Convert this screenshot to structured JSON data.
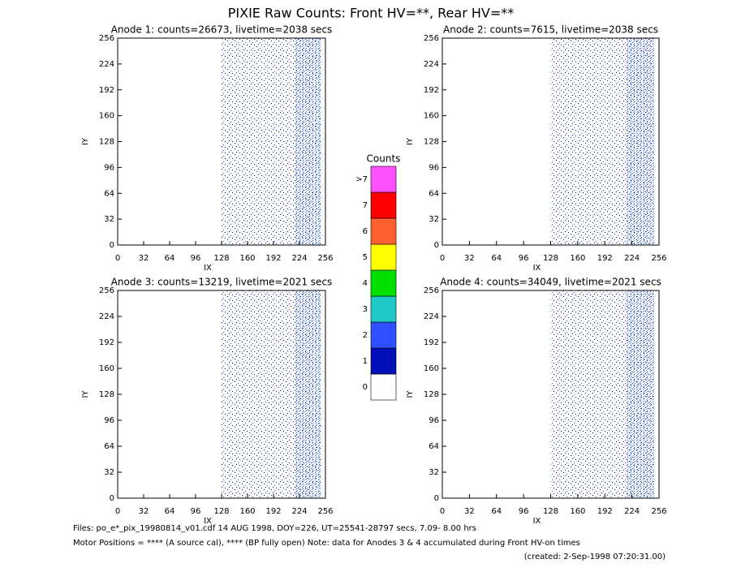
{
  "title": "PIXIE Raw Counts:  Front HV=**, Rear HV=**",
  "chart_data": [
    {
      "type": "heatmap",
      "title": "Anode 1: counts=26673, livetime=2038 secs",
      "xlabel": "IX",
      "ylabel": "IY",
      "xlim": [
        0,
        256
      ],
      "ylim": [
        0,
        256
      ],
      "xticks": [
        0,
        32,
        64,
        96,
        128,
        160,
        192,
        224,
        256
      ],
      "yticks": [
        0,
        32,
        64,
        96,
        128,
        160,
        192,
        224,
        256
      ]
    },
    {
      "type": "heatmap",
      "title": "Anode 2: counts=7615, livetime=2038 secs",
      "xlabel": "IX",
      "ylabel": "IY",
      "xlim": [
        0,
        256
      ],
      "ylim": [
        0,
        256
      ],
      "xticks": [
        0,
        32,
        64,
        96,
        128,
        160,
        192,
        224,
        256
      ],
      "yticks": [
        0,
        32,
        64,
        96,
        128,
        160,
        192,
        224,
        256
      ]
    },
    {
      "type": "heatmap",
      "title": "Anode 3: counts=13219, livetime=2021 secs",
      "xlabel": "IX",
      "ylabel": "IY",
      "xlim": [
        0,
        256
      ],
      "ylim": [
        0,
        256
      ],
      "xticks": [
        0,
        32,
        64,
        96,
        128,
        160,
        192,
        224,
        256
      ],
      "yticks": [
        0,
        32,
        64,
        96,
        128,
        160,
        192,
        224,
        256
      ]
    },
    {
      "type": "heatmap",
      "title": "Anode 4: counts=34049, livetime=2021 secs",
      "xlabel": "IX",
      "ylabel": "IY",
      "xlim": [
        0,
        256
      ],
      "ylim": [
        0,
        256
      ],
      "xticks": [
        0,
        32,
        64,
        96,
        128,
        160,
        192,
        224,
        256
      ],
      "yticks": [
        0,
        32,
        64,
        96,
        128,
        160,
        192,
        224,
        256
      ]
    }
  ],
  "colorbar": {
    "title": "Counts",
    "labels": [
      "0",
      "1",
      "2",
      "3",
      "4",
      "5",
      "6",
      "7",
      ">7"
    ],
    "colors": [
      "#ffffff",
      "#0010b8",
      "#3050ff",
      "#20c8c8",
      "#00e000",
      "#ffff00",
      "#ff6030",
      "#ff0000",
      "#ff50ff"
    ]
  },
  "footer": [
    "Files: po_e*_pix_19980814_v01.cdf    14 AUG 1998, DOY=226, UT=25541-28797 secs,  7.09- 8.00 hrs",
    "Motor Positions = **** (A source cal), **** (BP fully open)    Note: data for Anodes 3 & 4 accumulated during Front HV-on times",
    "(created:  2-Sep-1998 07:20:31.00)"
  ]
}
